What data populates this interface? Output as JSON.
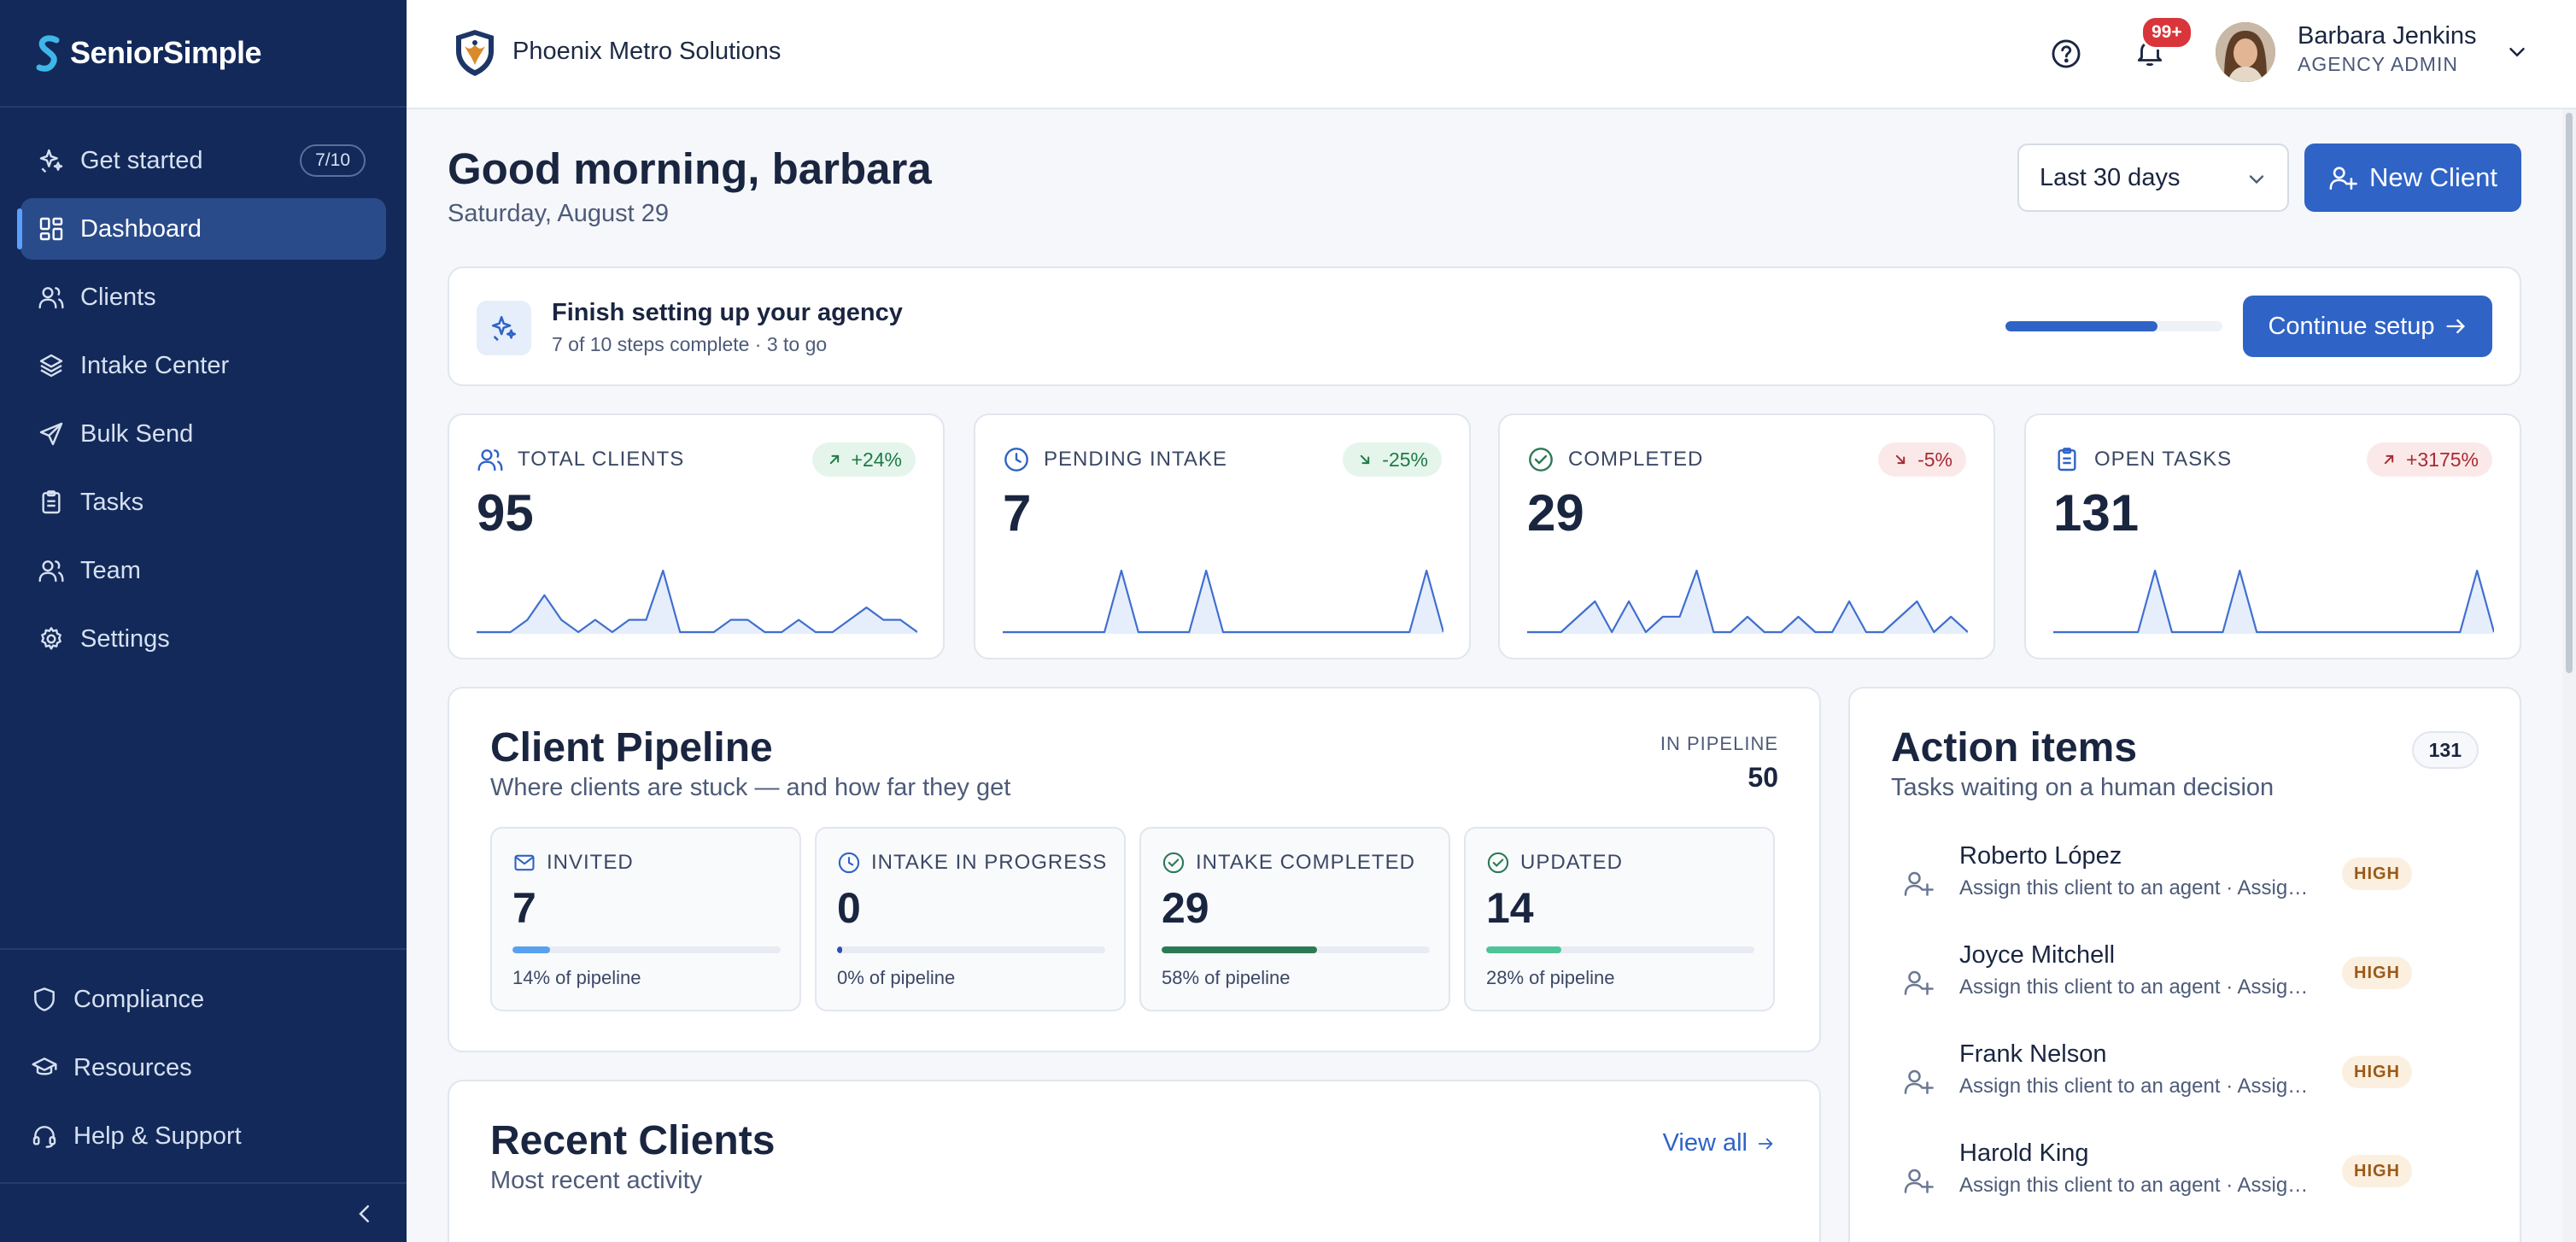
{
  "brand": {
    "name": "SeniorSimple"
  },
  "sidebar": {
    "items": [
      {
        "label": "Get started",
        "icon": "sparkle-icon",
        "badge": "7/10"
      },
      {
        "label": "Dashboard",
        "icon": "grid-icon",
        "active": true
      },
      {
        "label": "Clients",
        "icon": "users-icon"
      },
      {
        "label": "Intake Center",
        "icon": "layers-icon"
      },
      {
        "label": "Bulk Send",
        "icon": "send-icon"
      },
      {
        "label": "Tasks",
        "icon": "clipboard-icon"
      },
      {
        "label": "Team",
        "icon": "team-icon"
      },
      {
        "label": "Settings",
        "icon": "gear-icon"
      }
    ],
    "bottom": [
      {
        "label": "Compliance",
        "icon": "shield-icon"
      },
      {
        "label": "Resources",
        "icon": "graduation-cap-icon"
      },
      {
        "label": "Help & Support",
        "icon": "headset-icon"
      }
    ]
  },
  "header": {
    "org_name": "Phoenix Metro Solutions",
    "notifications": "99+",
    "user_name": "Barbara Jenkins",
    "user_role": "AGENCY ADMIN"
  },
  "greeting": {
    "title": "Good morning, barbara",
    "date": "Saturday, August 29",
    "range": "Last 30 days",
    "new_client": "New Client"
  },
  "setup": {
    "title": "Finish setting up your agency",
    "subtitle": "7 of 10 steps complete · 3 to go",
    "progress": 0.7,
    "button": "Continue setup"
  },
  "kpis": [
    {
      "label": "TOTAL CLIENTS",
      "value": "95",
      "change": "+24%",
      "trend": "up",
      "icon": "users-icon",
      "spark": [
        0,
        0,
        0,
        1,
        3,
        1,
        0,
        1,
        0,
        1,
        1,
        5,
        0,
        0,
        0,
        1,
        1,
        0,
        0,
        1,
        0,
        0,
        1,
        2,
        1,
        1,
        0
      ]
    },
    {
      "label": "PENDING INTAKE",
      "value": "7",
      "change": "-25%",
      "trend": "down",
      "icon": "clock-icon",
      "spark": [
        0,
        0,
        0,
        0,
        0,
        0,
        0,
        5,
        0,
        0,
        0,
        0,
        5,
        0,
        0,
        0,
        0,
        0,
        0,
        0,
        0,
        0,
        0,
        0,
        0,
        5,
        0
      ]
    },
    {
      "label": "COMPLETED",
      "value": "29",
      "change": "-5%",
      "trend": "down",
      "icon": "check-circle-icon",
      "spark": [
        0,
        0,
        0,
        1,
        2,
        0,
        2,
        0,
        1,
        1,
        4,
        0,
        0,
        1,
        0,
        0,
        1,
        0,
        0,
        2,
        0,
        0,
        1,
        2,
        0,
        1,
        0
      ]
    },
    {
      "label": "OPEN TASKS",
      "value": "131",
      "change": "+3175%",
      "trend": "up",
      "icon": "clipboard-icon",
      "spark": [
        0,
        0,
        0,
        0,
        0,
        0,
        5,
        0,
        0,
        0,
        0,
        5,
        0,
        0,
        0,
        0,
        0,
        0,
        0,
        0,
        0,
        0,
        0,
        0,
        0,
        5,
        0
      ]
    }
  ],
  "pipeline": {
    "title": "Client Pipeline",
    "subtitle": "Where clients are stuck — and how far they get",
    "total_label": "IN PIPELINE",
    "total": "50",
    "stages": [
      {
        "label": "INVITED",
        "value": "7",
        "pct_text": "14% of pipeline",
        "pct": 14,
        "color": "#5aa0f0",
        "icon": "mail-icon"
      },
      {
        "label": "INTAKE IN PROGRESS",
        "value": "0",
        "pct_text": "0% of pipeline",
        "pct": 0,
        "color": "#2f4fb0",
        "icon": "clock-icon"
      },
      {
        "label": "INTAKE COMPLETED",
        "value": "29",
        "pct_text": "58% of pipeline",
        "pct": 58,
        "color": "#2c7a55",
        "icon": "check-circle-icon"
      },
      {
        "label": "UPDATED",
        "value": "14",
        "pct_text": "28% of pipeline",
        "pct": 28,
        "color": "#4ec49a",
        "icon": "check-circle-icon"
      }
    ]
  },
  "recent": {
    "title": "Recent Clients",
    "subtitle": "Most recent activity",
    "view_all": "View all"
  },
  "actions": {
    "title": "Action items",
    "subtitle": "Tasks waiting on a human decision",
    "count": "131",
    "items": [
      {
        "name": "Roberto López",
        "desc": "Assign this client to an agent · Assign a client",
        "priority": "HIGH"
      },
      {
        "name": "Joyce Mitchell",
        "desc": "Assign this client to an agent · Assign a client",
        "priority": "HIGH"
      },
      {
        "name": "Frank Nelson",
        "desc": "Assign this client to an agent · Assign a client",
        "priority": "HIGH"
      },
      {
        "name": "Harold King",
        "desc": "Assign this client to an agent · Assign a client",
        "priority": "HIGH"
      }
    ]
  }
}
